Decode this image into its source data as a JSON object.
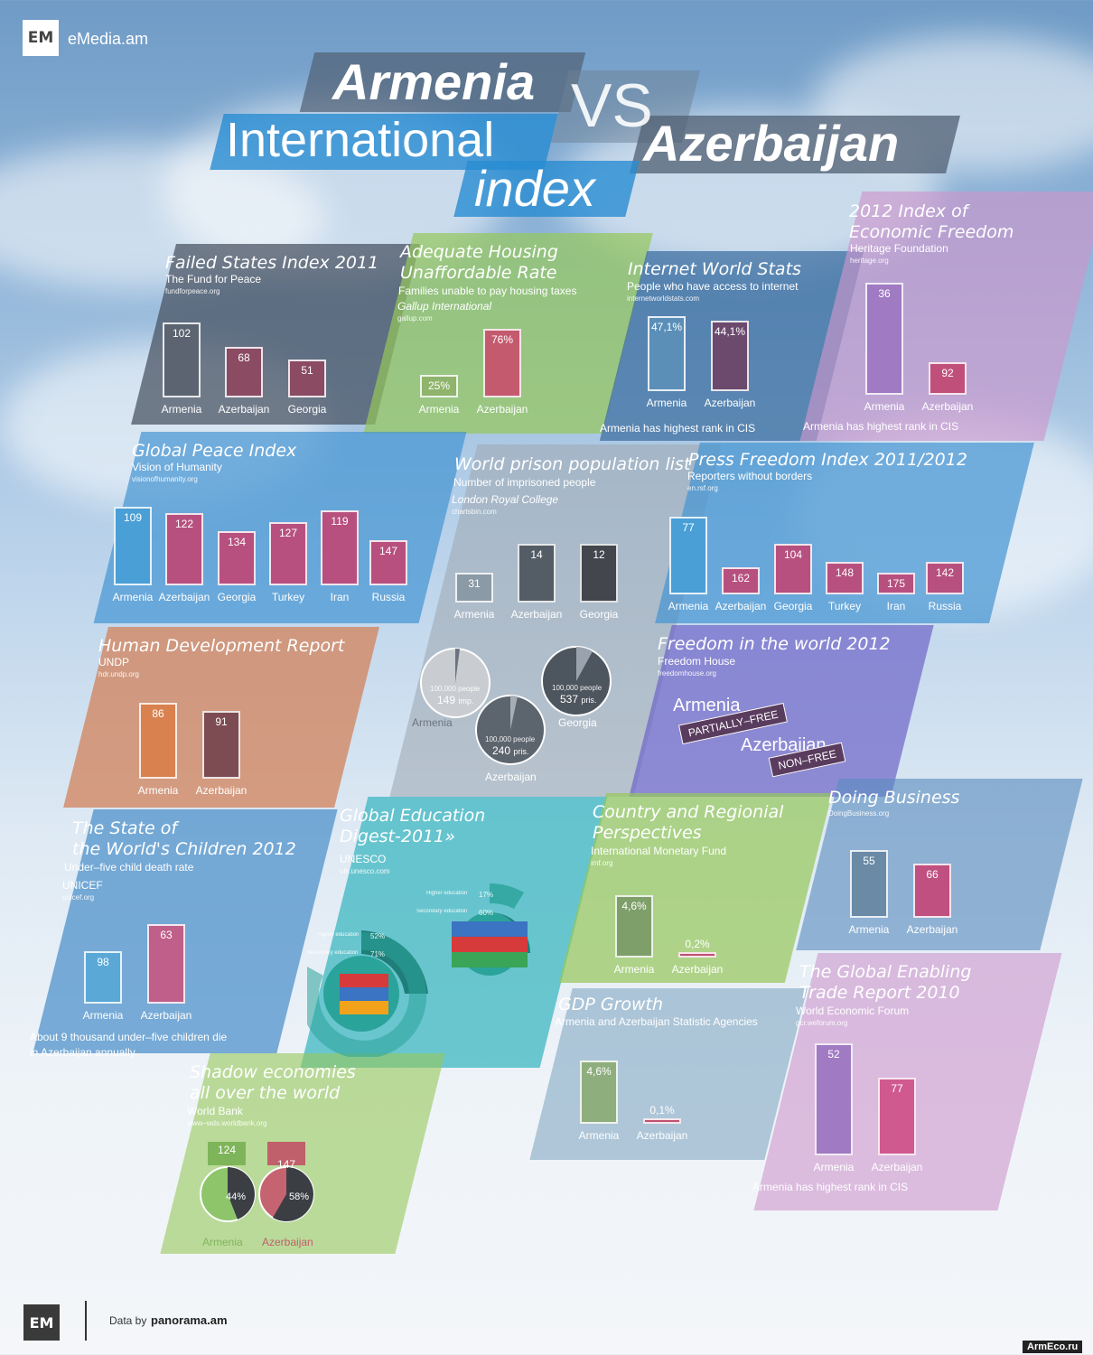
{
  "brand": {
    "logo": "EM",
    "site": "eMedia.am",
    "footer_logo": "EM",
    "data_by": "Data by",
    "data_source": "panorama.am",
    "watermark": "ArmEco.ru"
  },
  "title": {
    "armenia": "Armenia",
    "international": "International",
    "vs": "VS",
    "azerbaijan": "Azerbaijan",
    "index": "index"
  },
  "colors": {
    "armenia": "#4a9fd6",
    "azerbaijan": "#b7507f",
    "georgia": "#8a4b63",
    "gray": "#5b6470",
    "green": "#8fb46c",
    "orange": "#d9814f"
  },
  "panels": {
    "failed": {
      "title": "Failed States Index 2011",
      "sub": "The Fund for Peace",
      "src": "fundforpeace.org"
    },
    "housing": {
      "title1": "Adequate Housing",
      "title2": "Unaffordable Rate",
      "sub": "Families unable to pay housing taxes",
      "sub2": "Gallup International",
      "src": "gallup.com"
    },
    "internet": {
      "title": "Internet World Stats",
      "sub": "People who have access to internet",
      "src": "internetworldstats.com",
      "note": "Armenia has highest rank in CIS"
    },
    "econ": {
      "title1": "2012 Index of",
      "title2": "Economic Freedom",
      "sub": "Heritage Foundation",
      "src": "heritage.org",
      "note": "Armenia has highest rank in CIS"
    },
    "peace": {
      "title": "Global Peace Index",
      "sub": "Vision of Humanity",
      "src": "visionofhumanity.org"
    },
    "prison": {
      "title": "World prison population list",
      "sub": "Number of imprisoned people",
      "sub2": "London Royal College",
      "src": "chartsbin.com",
      "circles": [
        {
          "name": "Armenia",
          "l1": "100,000 people",
          "l2": "149",
          "unit": "imp."
        },
        {
          "name": "Georgia",
          "l1": "100,000 people",
          "l2": "537",
          "unit": "pris."
        },
        {
          "name": "Azerbaijan",
          "l1": "100,000 people",
          "l2": "240",
          "unit": "pris."
        }
      ]
    },
    "press": {
      "title": "Press Freedom Index 2011/2012",
      "sub": "Reporters without borders",
      "src": "en.rsf.org"
    },
    "hdr": {
      "title": "Human Development Report",
      "sub": "UNDP",
      "src": "hdr.undp.org"
    },
    "freedom": {
      "title": "Freedom in the world 2012",
      "sub": "Freedom House",
      "src": "freedomhouse.org",
      "arm": "Armenia",
      "arm_tag": "PARTIALLY–FREE",
      "aze": "Azerbaijan",
      "aze_tag": "NON–FREE"
    },
    "children": {
      "title1": "The State of",
      "title2": "the World's Children 2012",
      "sub": "Under–five child death rate",
      "sub2": "UNICEF",
      "src": "unicef.org",
      "note1": "About 9 thousand under–five children die",
      "note2": "in Azerbaijan annually."
    },
    "edu": {
      "title1": "Global Education",
      "title2": "Digest-2011»",
      "sub": "UNESCO",
      "src": "uis.unesco.com",
      "labels": {
        "higher": "Higher education",
        "secondary": "Secondary education"
      },
      "arm": {
        "higher": "52%",
        "secondary": "71%"
      },
      "aze": {
        "higher": "17%",
        "secondary": "60%"
      }
    },
    "country": {
      "title1": "Country and Regionial",
      "title2": "Perspectives",
      "sub": "International Monetary Fund",
      "src": "imf.org"
    },
    "doing": {
      "title": "Doing Business",
      "src": "DoingBusiness.org"
    },
    "gdp": {
      "title": "GDP Growth",
      "sub": "Armenia and Azerbaijan Statistic Agencies"
    },
    "trade": {
      "title1": "The Global Enabling",
      "title2": "Trade Report 2010",
      "sub": "World Economic Forum",
      "src": "gcr.weforum.org",
      "note": "Armenia has highest rank in CIS"
    },
    "shadow": {
      "title1": "Shadow economies",
      "title2": "all over the world",
      "sub": "World Bank",
      "src": "www–wds.worldbank.org"
    }
  },
  "chart_data": [
    {
      "id": "failed",
      "type": "bar",
      "categories": [
        "Armenia",
        "Azerbaijan",
        "Georgia"
      ],
      "values": [
        102,
        68,
        51
      ],
      "labels": [
        "102",
        "68",
        "51"
      ]
    },
    {
      "id": "housing",
      "type": "bar",
      "categories": [
        "Armenia",
        "Azerbaijan"
      ],
      "values": [
        25,
        76
      ],
      "labels": [
        "25%",
        "76%"
      ]
    },
    {
      "id": "internet",
      "type": "bar",
      "categories": [
        "Armenia",
        "Azerbaijan"
      ],
      "values": [
        47.1,
        44.1
      ],
      "labels": [
        "47,1%",
        "44,1%"
      ]
    },
    {
      "id": "econ",
      "type": "bar",
      "categories": [
        "Armenia",
        "Azerbaijan"
      ],
      "values": [
        36,
        92
      ],
      "labels": [
        "36",
        "92"
      ]
    },
    {
      "id": "peace",
      "type": "bar",
      "categories": [
        "Armenia",
        "Azerbaijan",
        "Georgia",
        "Turkey",
        "Iran",
        "Russia"
      ],
      "values": [
        109,
        122,
        134,
        127,
        119,
        147
      ],
      "labels": [
        "109",
        "122",
        "134",
        "127",
        "119",
        "147"
      ]
    },
    {
      "id": "prison",
      "type": "bar",
      "categories": [
        "Armenia",
        "Azerbaijan",
        "Georgia"
      ],
      "values": [
        31,
        14,
        12
      ],
      "labels": [
        "31",
        "14",
        "12"
      ]
    },
    {
      "id": "press",
      "type": "bar",
      "categories": [
        "Armenia",
        "Azerbaijan",
        "Georgia",
        "Turkey",
        "Iran",
        "Russia"
      ],
      "values": [
        77,
        162,
        104,
        148,
        175,
        142
      ],
      "labels": [
        "77",
        "162",
        "104",
        "148",
        "175",
        "142"
      ]
    },
    {
      "id": "hdr",
      "type": "bar",
      "categories": [
        "Armenia",
        "Azerbaijan"
      ],
      "values": [
        86,
        91
      ],
      "labels": [
        "86",
        "91"
      ]
    },
    {
      "id": "children",
      "type": "bar",
      "categories": [
        "Armenia",
        "Azerbaijan"
      ],
      "values": [
        98,
        63
      ],
      "labels": [
        "98",
        "63"
      ]
    },
    {
      "id": "country",
      "type": "bar",
      "categories": [
        "Armenia",
        "Azerbaijan"
      ],
      "values": [
        4.6,
        0.2
      ],
      "labels": [
        "4,6%",
        "0,2%"
      ]
    },
    {
      "id": "doing",
      "type": "bar",
      "categories": [
        "Armenia",
        "Azerbaijan"
      ],
      "values": [
        55,
        66
      ],
      "labels": [
        "55",
        "66"
      ]
    },
    {
      "id": "gdp",
      "type": "bar",
      "categories": [
        "Armenia",
        "Azerbaijan"
      ],
      "values": [
        4.6,
        0.1
      ],
      "labels": [
        "4,6%",
        "0,1%"
      ]
    },
    {
      "id": "trade",
      "type": "bar",
      "categories": [
        "Armenia",
        "Azerbaijan"
      ],
      "values": [
        52,
        77
      ],
      "labels": [
        "52",
        "77"
      ]
    },
    {
      "id": "shadow",
      "type": "pie",
      "categories": [
        "Armenia",
        "Azerbaijan"
      ],
      "ranks": [
        "124",
        "147"
      ],
      "values": [
        44,
        58
      ],
      "labels": [
        "44%",
        "58%"
      ]
    }
  ]
}
